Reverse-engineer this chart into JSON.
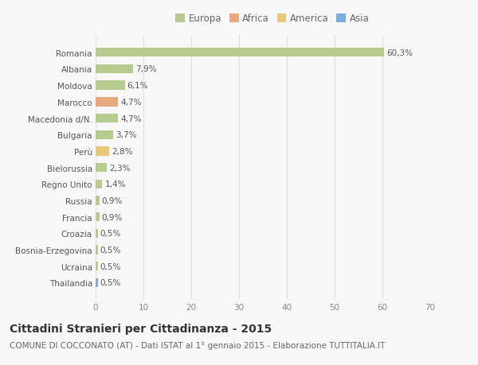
{
  "countries": [
    "Romania",
    "Albania",
    "Moldova",
    "Marocco",
    "Macedonia d/N.",
    "Bulgaria",
    "Perù",
    "Bielorussia",
    "Regno Unito",
    "Russia",
    "Francia",
    "Croazia",
    "Bosnia-Erzegovina",
    "Ucraina",
    "Thailandia"
  ],
  "values": [
    60.3,
    7.9,
    6.1,
    4.7,
    4.7,
    3.7,
    2.8,
    2.3,
    1.4,
    0.9,
    0.9,
    0.5,
    0.5,
    0.5,
    0.5
  ],
  "labels": [
    "60,3%",
    "7,9%",
    "6,1%",
    "4,7%",
    "4,7%",
    "3,7%",
    "2,8%",
    "2,3%",
    "1,4%",
    "0,9%",
    "0,9%",
    "0,5%",
    "0,5%",
    "0,5%",
    "0,5%"
  ],
  "colors": [
    "#b5cc8e",
    "#b5cc8e",
    "#b5cc8e",
    "#e8a87c",
    "#b5cc8e",
    "#b5cc8e",
    "#e8c97a",
    "#b5cc8e",
    "#b5cc8e",
    "#b5cc8e",
    "#b5cc8e",
    "#b5cc8e",
    "#b5cc8e",
    "#b5cc8e",
    "#7aade0"
  ],
  "legend_labels": [
    "Europa",
    "Africa",
    "America",
    "Asia"
  ],
  "legend_colors": [
    "#b5cc8e",
    "#e8a87c",
    "#e8c97a",
    "#7aade0"
  ],
  "xlim": [
    0,
    70
  ],
  "xticks": [
    0,
    10,
    20,
    30,
    40,
    50,
    60,
    70
  ],
  "title": "Cittadini Stranieri per Cittadinanza - 2015",
  "subtitle": "COMUNE DI COCCONATO (AT) - Dati ISTAT al 1° gennaio 2015 - Elaborazione TUTTITALIA.IT",
  "bg_color": "#f8f8f8",
  "grid_color": "#e0e0e0",
  "bar_height": 0.55,
  "label_fontsize": 7.5,
  "tick_fontsize": 7.5,
  "title_fontsize": 10,
  "subtitle_fontsize": 7.5
}
